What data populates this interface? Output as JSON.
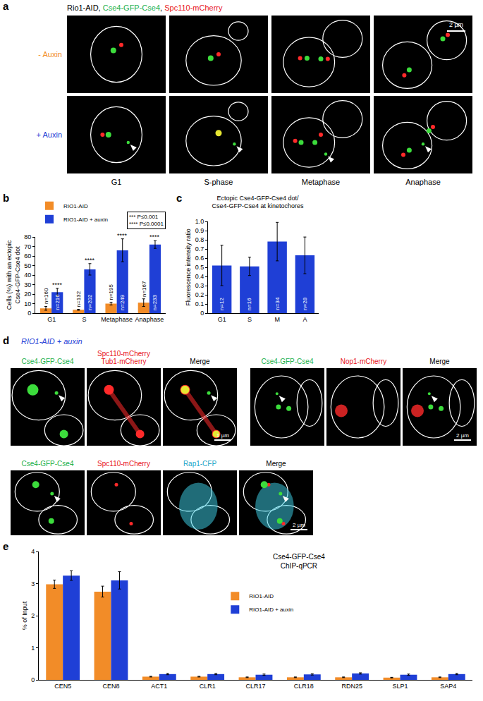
{
  "panel_labels": [
    "a",
    "b",
    "c",
    "d",
    "e"
  ],
  "panel_a": {
    "header": [
      {
        "text": "Rio1-AID, ",
        "color": "#000000"
      },
      {
        "text": "Cse4-GFP-Cse4",
        "color": "#22b14c"
      },
      {
        "text": ", ",
        "color": "#000000"
      },
      {
        "text": "Spc110-mCherry",
        "color": "#e8141b"
      }
    ],
    "rows": [
      {
        "label": "- Auxin",
        "color": "#f28c28"
      },
      {
        "label": "+ Auxin",
        "color": "#1f3fd6"
      }
    ],
    "columns": [
      "G1",
      "S-phase",
      "Metaphase",
      "Anaphase"
    ],
    "scale_bar": "2 µm"
  },
  "panel_d": {
    "title": "RIO1-AID + auxin",
    "title_color": "#1f3fd6",
    "groups": [
      {
        "labels": [
          {
            "lines": [
              "Cse4-GFP-Cse4"
            ],
            "color": "#22b14c"
          },
          {
            "lines": [
              "Spc110-mCherry",
              "Tub1-mCherry"
            ],
            "color": "#e8141b"
          },
          {
            "lines": [
              "Merge"
            ],
            "color": "#000000"
          }
        ],
        "scale_bar": "1 µm"
      },
      {
        "labels": [
          {
            "lines": [
              "Cse4-GFP-Cse4"
            ],
            "color": "#22b14c"
          },
          {
            "lines": [
              "Nop1-mCherry"
            ],
            "color": "#e8141b"
          },
          {
            "lines": [
              "Merge"
            ],
            "color": "#000000"
          }
        ],
        "scale_bar": "2 µm"
      },
      {
        "labels": [
          {
            "lines": [
              "Cse4-GFP-Cse4"
            ],
            "color": "#22b14c"
          },
          {
            "lines": [
              "Spc110-mCherry"
            ],
            "color": "#e8141b"
          },
          {
            "lines": [
              "Rap1-CFP"
            ],
            "color": "#1aa6c8"
          },
          {
            "lines": [
              "Merge"
            ],
            "color": "#000000"
          }
        ],
        "scale_bar": "2 µm"
      }
    ]
  },
  "chart_data": [
    {
      "type": "bar",
      "categories": [
        "G1",
        "S",
        "Metaphase",
        "Anaphase"
      ],
      "ylabel_lines": [
        "Cells (%) with an ectopic",
        "Cse4-GFP-Cse4 dot"
      ],
      "series": [
        {
          "name": "RIO1-AID",
          "color": "#f28c28",
          "values": [
            5,
            3.5,
            10,
            11
          ],
          "errors": [
            2,
            0.5,
            1.5,
            4
          ],
          "annotations": [
            "n=160",
            "n=132",
            "n=195",
            "n=167"
          ]
        },
        {
          "name": "RIO1-AID + auxin",
          "color": "#1f3fd6",
          "values": [
            22,
            46,
            66,
            72
          ],
          "errors": [
            4,
            6,
            12,
            4
          ],
          "annotations": [
            "n=216",
            "n=202",
            "n=249",
            "n=233"
          ],
          "significance": [
            "****",
            "****",
            "****",
            "****"
          ]
        }
      ],
      "significance_key": [
        "*** P≤0.001",
        "**** P≤0.0001"
      ],
      "ylim": [
        0,
        80
      ],
      "yticks": [
        0,
        10,
        20,
        30,
        40,
        50,
        60,
        70,
        80
      ],
      "legend": "top left"
    },
    {
      "type": "bar",
      "title_lines": [
        "Ectopic Cse4-GFP-Cse4 dot/",
        "Cse4-GFP-Cse4 at kinetochores"
      ],
      "categories": [
        "G1",
        "S",
        "M",
        "A"
      ],
      "ylabel": "Fluorescence intensity ratio",
      "series": [
        {
          "color": "#1f3fd6",
          "values": [
            0.52,
            0.51,
            0.78,
            0.63
          ],
          "errors": [
            0.22,
            0.1,
            0.21,
            0.2
          ],
          "annotations": [
            "n=12",
            "n=16",
            "n=34",
            "n=28"
          ]
        }
      ],
      "ylim": [
        0,
        1
      ],
      "yticks": [
        0,
        0.1,
        0.2,
        0.3,
        0.4,
        0.5,
        0.6,
        0.7,
        0.8,
        0.9,
        {
          "value": 1,
          "label": "1.0"
        }
      ]
    },
    {
      "type": "bar",
      "categories": [
        "CEN5",
        "CEN8",
        "ACT1",
        "CLR1",
        "CLR17",
        "CLR18",
        "RDN25",
        "SLP1",
        "SAP4"
      ],
      "annotation_lines": [
        "Cse4-GFP-Cse4",
        "ChIP-qPCR"
      ],
      "ylabel": "% of Input",
      "series": [
        {
          "name": "RIO1-AID",
          "color": "#f28c28",
          "values": [
            2.98,
            2.75,
            0.1,
            0.1,
            0.08,
            0.08,
            0.08,
            0.07,
            0.08
          ],
          "errors": [
            0.13,
            0.17,
            0.01,
            0.01,
            0.01,
            0.01,
            0.01,
            0.01,
            0.01
          ]
        },
        {
          "name": "RIO1-AID + auxin",
          "color": "#1f3fd6",
          "values": [
            3.25,
            3.1,
            0.18,
            0.18,
            0.16,
            0.17,
            0.2,
            0.16,
            0.18
          ],
          "errors": [
            0.15,
            0.27,
            0.02,
            0.02,
            0.02,
            0.02,
            0.02,
            0.02,
            0.02
          ]
        }
      ],
      "ylim": [
        0,
        4
      ],
      "yticks": [
        0,
        1,
        2,
        3,
        4
      ],
      "legend": "center"
    }
  ]
}
